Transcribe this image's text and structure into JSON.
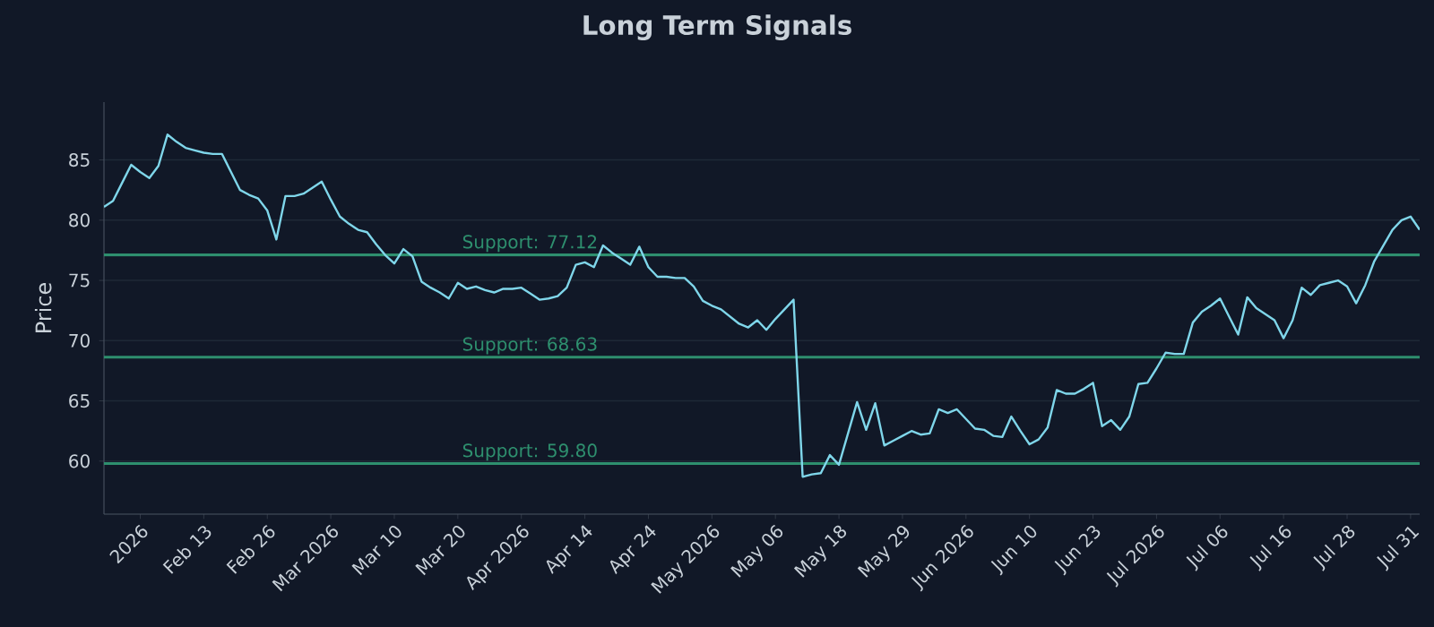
{
  "chart_data": {
    "type": "line",
    "title": "Long Term Signals",
    "ylabel": "Price",
    "categories": [
      null,
      null,
      null,
      null,
      "2026",
      null,
      null,
      null,
      null,
      null,
      null,
      "Feb 13",
      null,
      null,
      null,
      null,
      null,
      null,
      "Feb 26",
      null,
      null,
      null,
      null,
      null,
      null,
      "Mar 2026",
      null,
      null,
      null,
      null,
      null,
      null,
      "Mar 10",
      null,
      null,
      null,
      null,
      null,
      null,
      "Mar 20",
      null,
      null,
      null,
      null,
      null,
      null,
      "Apr 2026",
      null,
      null,
      null,
      null,
      null,
      null,
      "Apr 14",
      null,
      null,
      null,
      null,
      null,
      null,
      "Apr 24",
      null,
      null,
      null,
      null,
      null,
      null,
      "May 2026",
      null,
      null,
      null,
      null,
      null,
      null,
      "May 06",
      null,
      null,
      null,
      null,
      null,
      null,
      "May 18",
      null,
      null,
      null,
      null,
      null,
      null,
      "May 29",
      null,
      null,
      null,
      null,
      null,
      null,
      "Jun 2026",
      null,
      null,
      null,
      null,
      null,
      null,
      "Jun 10",
      null,
      null,
      null,
      null,
      null,
      null,
      "Jun 23",
      null,
      null,
      null,
      null,
      null,
      null,
      "Jul 2026",
      null,
      null,
      null,
      null,
      null,
      null,
      "Jul 06",
      null,
      null,
      null,
      null,
      null,
      null,
      "Jul 16",
      null,
      null,
      null,
      null,
      null,
      null,
      "Jul 28",
      null,
      null,
      null,
      null,
      null,
      null,
      "Jul 31",
      null
    ],
    "series": [
      {
        "color": "#7fd6ea",
        "values": [
          81.1,
          81.6,
          83.1,
          84.6,
          84.0,
          83.5,
          84.5,
          87.1,
          86.5,
          86.0,
          85.8,
          85.6,
          85.5,
          85.5,
          84.0,
          82.5,
          82.1,
          81.8,
          80.8,
          78.4,
          82.0,
          82.0,
          82.2,
          82.7,
          83.2,
          81.7,
          80.3,
          79.7,
          79.2,
          79.0,
          78.0,
          77.1,
          76.4,
          77.6,
          77.0,
          74.9,
          74.4,
          74.0,
          73.5,
          74.8,
          74.3,
          74.5,
          74.2,
          74.0,
          74.3,
          74.3,
          74.4,
          73.9,
          73.4,
          73.5,
          73.7,
          74.4,
          76.3,
          76.5,
          76.1,
          77.9,
          77.3,
          76.8,
          76.3,
          77.8,
          76.1,
          75.3,
          75.3,
          75.2,
          75.2,
          74.5,
          73.3,
          72.9,
          72.6,
          72.0,
          71.4,
          71.1,
          71.7,
          70.9,
          71.8,
          72.6,
          73.4,
          58.7,
          58.9,
          59.0,
          60.5,
          59.7,
          62.3,
          64.9,
          62.6,
          64.8,
          61.3,
          61.7,
          62.1,
          62.5,
          62.2,
          62.3,
          64.3,
          64.0,
          64.3,
          63.5,
          62.7,
          62.6,
          62.1,
          62.0,
          63.7,
          62.5,
          61.4,
          61.8,
          62.8,
          65.9,
          65.6,
          65.6,
          66.0,
          66.5,
          62.9,
          63.4,
          62.6,
          63.7,
          66.4,
          66.5,
          67.7,
          69.0,
          68.9,
          68.9,
          71.5,
          72.4,
          72.9,
          73.5,
          72.0,
          70.5,
          73.6,
          72.7,
          72.2,
          71.7,
          70.2,
          71.7,
          74.4,
          73.8,
          74.6,
          74.8,
          75.0,
          74.5,
          73.1,
          74.6,
          76.6,
          77.9,
          79.2,
          80.0,
          80.3,
          79.2
        ]
      }
    ],
    "ylim": [
      55.6,
      89.8
    ],
    "yticks": [
      60,
      65,
      70,
      75,
      80,
      85
    ],
    "grid": "y",
    "ref_lines": [
      {
        "axis": "y",
        "value": 77.12,
        "label": "Support: 77.12",
        "color": "#2e8f6e"
      },
      {
        "axis": "y",
        "value": 68.63,
        "label": "Support: 68.63",
        "color": "#2e8f6e"
      },
      {
        "axis": "y",
        "value": 59.8,
        "label": "Support: 59.80",
        "color": "#2e8f6e"
      }
    ]
  }
}
